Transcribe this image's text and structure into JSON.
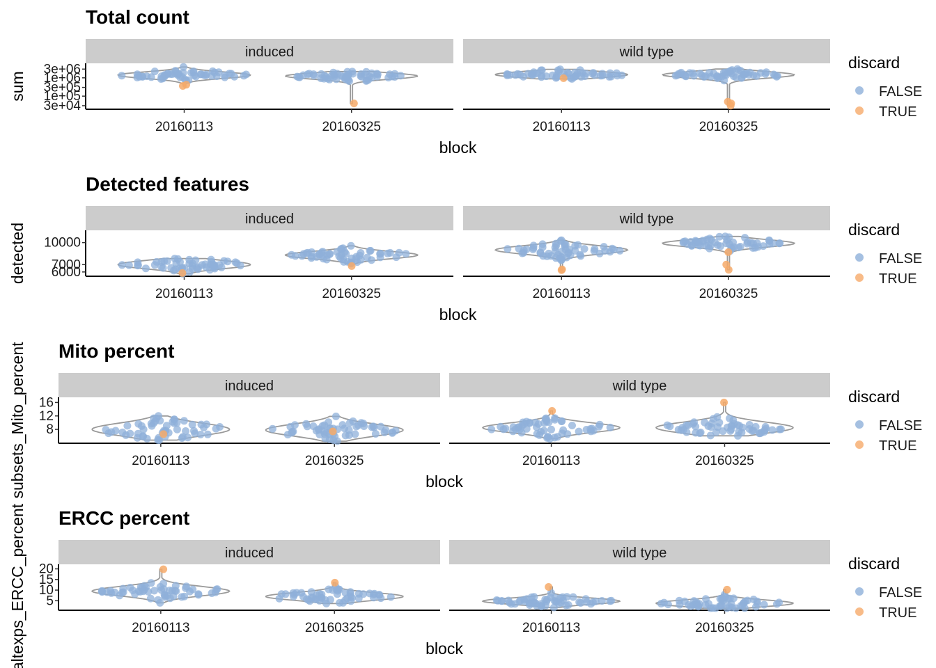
{
  "colors": {
    "FALSE": "#8fb0da",
    "TRUE": "#f6aa6a",
    "violin": "#9a9a9a",
    "strip": "#cccccc"
  },
  "legend": {
    "title": "discard",
    "items": [
      "FALSE",
      "TRUE"
    ]
  },
  "chart_data": [
    {
      "type": "scatter",
      "title": "Total count",
      "xlabel": "block",
      "ylabel": "sum",
      "y_scale": "log10",
      "y_ticks": [
        30000,
        100000,
        300000,
        1000000,
        3000000
      ],
      "y_tick_labels": [
        "3e+04",
        "1e+05",
        "3e+05",
        "1e+06",
        "3e+06"
      ],
      "ylim": [
        25000,
        4000000
      ],
      "categories": [
        "20160113",
        "20160325"
      ],
      "panels": [
        {
          "facet": "induced",
          "groups": [
            {
              "block": "20160113",
              "center": 1400000,
              "spread": 0.16,
              "false_count": 55,
              "true_points": [
                420000,
                360000
              ]
            },
            {
              "block": "20160325",
              "center": 1250000,
              "spread": 0.14,
              "false_count": 55,
              "true_points": [
                40000
              ]
            }
          ]
        },
        {
          "facet": "wild type",
          "groups": [
            {
              "block": "20160113",
              "center": 1500000,
              "spread": 0.1,
              "false_count": 55,
              "true_points": [
                950000
              ]
            },
            {
              "block": "20160325",
              "center": 1450000,
              "spread": 0.16,
              "false_count": 55,
              "true_points": [
                50000,
                40000,
                30000
              ]
            }
          ]
        }
      ]
    },
    {
      "type": "scatter",
      "title": "Detected features",
      "xlabel": "block",
      "ylabel": "detected",
      "y_ticks": [
        6000,
        7000,
        10000
      ],
      "y_tick_labels": [
        "6000",
        "7000",
        "10000"
      ],
      "ylim": [
        5700,
        11200
      ],
      "categories": [
        "20160113",
        "20160325"
      ],
      "panels": [
        {
          "facet": "induced",
          "groups": [
            {
              "block": "20160113",
              "center": 7000,
              "spread": 500,
              "false_count": 55,
              "true_points": [
                5850
              ]
            },
            {
              "block": "20160325",
              "center": 8300,
              "spread": 450,
              "false_count": 55,
              "true_points": [
                6800
              ]
            }
          ]
        },
        {
          "facet": "wild type",
          "groups": [
            {
              "block": "20160113",
              "center": 9000,
              "spread": 500,
              "false_count": 55,
              "true_points": [
                6350,
                6250
              ]
            },
            {
              "block": "20160325",
              "center": 9900,
              "spread": 450,
              "false_count": 55,
              "true_points": [
                8700,
                7000,
                6300
              ]
            }
          ]
        }
      ]
    },
    {
      "type": "scatter",
      "title": "Mito percent",
      "xlabel": "block",
      "ylabel": "subsets_Mito_percent",
      "y_ticks": [
        8,
        12,
        16
      ],
      "y_tick_labels": [
        "8",
        "12",
        "16"
      ],
      "ylim": [
        4.5,
        16.5
      ],
      "categories": [
        "20160113",
        "20160325"
      ],
      "panels": [
        {
          "facet": "induced",
          "groups": [
            {
              "block": "20160113",
              "center": 8,
              "spread": 1.7,
              "false_count": 55,
              "true_points": [
                6.6
              ]
            },
            {
              "block": "20160325",
              "center": 7.8,
              "spread": 1.6,
              "false_count": 55,
              "true_points": [
                7.4
              ]
            }
          ]
        },
        {
          "facet": "wild type",
          "groups": [
            {
              "block": "20160113",
              "center": 8.5,
              "spread": 1.3,
              "false_count": 55,
              "true_points": [
                13.5
              ]
            },
            {
              "block": "20160325",
              "center": 8.5,
              "spread": 1.5,
              "false_count": 55,
              "true_points": [
                16
              ]
            }
          ]
        }
      ]
    },
    {
      "type": "scatter",
      "title": "ERCC percent",
      "xlabel": "block",
      "ylabel": "altexps_ERCC_percent",
      "y_ticks": [
        5,
        10,
        15,
        20
      ],
      "y_tick_labels": [
        "5",
        "10",
        "15",
        "20"
      ],
      "ylim": [
        1.5,
        20.5
      ],
      "categories": [
        "20160113",
        "20160325"
      ],
      "panels": [
        {
          "facet": "induced",
          "groups": [
            {
              "block": "20160113",
              "center": 9.5,
              "spread": 2.0,
              "false_count": 55,
              "true_points": [
                19.8
              ]
            },
            {
              "block": "20160325",
              "center": 7,
              "spread": 1.6,
              "false_count": 55,
              "true_points": [
                13.5
              ]
            }
          ]
        },
        {
          "facet": "wild type",
          "groups": [
            {
              "block": "20160113",
              "center": 4.8,
              "spread": 1.3,
              "false_count": 55,
              "true_points": [
                11.5
              ]
            },
            {
              "block": "20160325",
              "center": 3.8,
              "spread": 1.4,
              "false_count": 55,
              "true_points": [
                10.2
              ]
            }
          ]
        }
      ]
    }
  ]
}
